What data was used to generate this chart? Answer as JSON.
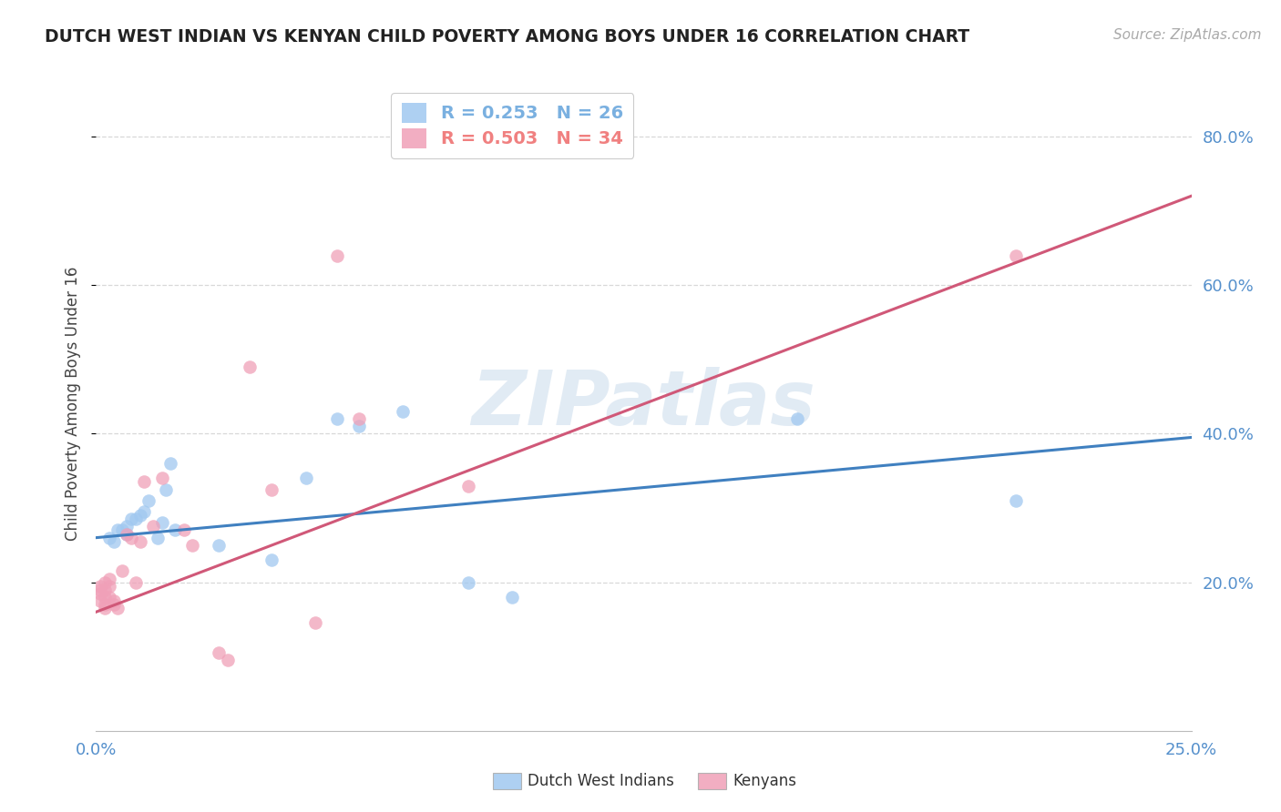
{
  "title": "DUTCH WEST INDIAN VS KENYAN CHILD POVERTY AMONG BOYS UNDER 16 CORRELATION CHART",
  "source": "Source: ZipAtlas.com",
  "ylabel": "Child Poverty Among Boys Under 16",
  "ytick_values": [
    0.2,
    0.4,
    0.6,
    0.8
  ],
  "ytick_labels": [
    "20.0%",
    "40.0%",
    "60.0%",
    "80.0%"
  ],
  "xlim": [
    0.0,
    0.25
  ],
  "ylim": [
    0.0,
    0.88
  ],
  "legend_entries": [
    {
      "label": "R = 0.253   N = 26",
      "color": "#7ab0e0"
    },
    {
      "label": "R = 0.503   N = 34",
      "color": "#f08080"
    }
  ],
  "watermark": "ZIPatlas",
  "blue_scatter_x": [
    0.003,
    0.004,
    0.005,
    0.006,
    0.007,
    0.007,
    0.008,
    0.009,
    0.01,
    0.011,
    0.012,
    0.014,
    0.015,
    0.016,
    0.017,
    0.018,
    0.028,
    0.04,
    0.048,
    0.055,
    0.06,
    0.07,
    0.085,
    0.095,
    0.16,
    0.21
  ],
  "blue_scatter_y": [
    0.26,
    0.255,
    0.27,
    0.27,
    0.275,
    0.265,
    0.285,
    0.285,
    0.29,
    0.295,
    0.31,
    0.26,
    0.28,
    0.325,
    0.36,
    0.27,
    0.25,
    0.23,
    0.34,
    0.42,
    0.41,
    0.43,
    0.2,
    0.18,
    0.42,
    0.31
  ],
  "pink_scatter_x": [
    0.001,
    0.001,
    0.001,
    0.001,
    0.002,
    0.002,
    0.002,
    0.002,
    0.002,
    0.003,
    0.003,
    0.003,
    0.004,
    0.004,
    0.005,
    0.006,
    0.007,
    0.008,
    0.009,
    0.01,
    0.011,
    0.013,
    0.015,
    0.02,
    0.022,
    0.028,
    0.03,
    0.035,
    0.04,
    0.05,
    0.055,
    0.06,
    0.085,
    0.21
  ],
  "pink_scatter_y": [
    0.195,
    0.19,
    0.185,
    0.175,
    0.2,
    0.19,
    0.18,
    0.17,
    0.165,
    0.205,
    0.195,
    0.18,
    0.175,
    0.17,
    0.165,
    0.215,
    0.265,
    0.26,
    0.2,
    0.255,
    0.335,
    0.275,
    0.34,
    0.27,
    0.25,
    0.105,
    0.095,
    0.49,
    0.325,
    0.145,
    0.64,
    0.42,
    0.33,
    0.64
  ],
  "blue_line_x": [
    0.0,
    0.25
  ],
  "blue_line_y": [
    0.26,
    0.395
  ],
  "pink_line_x": [
    0.0,
    0.25
  ],
  "pink_line_y": [
    0.16,
    0.72
  ],
  "blue_color": "#a0c8f0",
  "pink_color": "#f0a0b8",
  "blue_line_color": "#4080c0",
  "pink_line_color": "#d05878",
  "scatter_size": 110,
  "background_color": "#ffffff",
  "grid_color": "#d8d8d8",
  "axis_tick_color": "#5590cc",
  "title_color": "#222222",
  "ylabel_color": "#444444",
  "source_color": "#aaaaaa"
}
